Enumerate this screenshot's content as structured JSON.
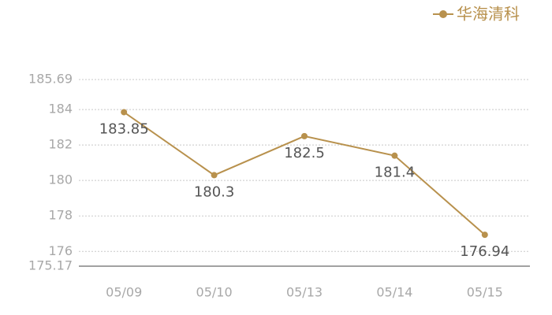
{
  "chart_data": {
    "type": "line",
    "categories": [
      "05/09",
      "05/10",
      "05/13",
      "05/14",
      "05/15"
    ],
    "series": [
      {
        "name": "华海清科",
        "color": "#b8914d",
        "values": [
          183.85,
          180.3,
          182.5,
          181.4,
          176.94
        ]
      }
    ],
    "ylim": [
      175.17,
      185.69
    ],
    "yticks": [
      175.17,
      176,
      178,
      180,
      182,
      184,
      185.69
    ],
    "grid": true,
    "legend": "top-right"
  }
}
